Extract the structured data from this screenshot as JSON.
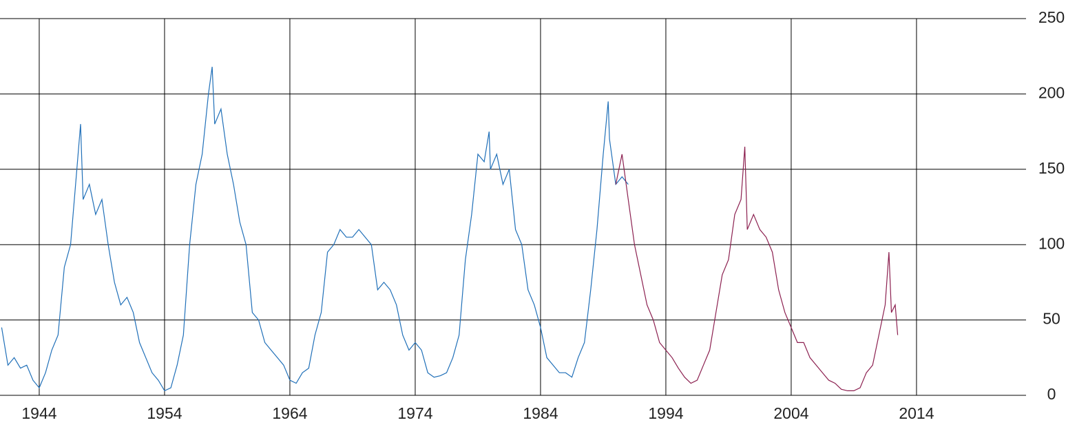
{
  "chart_data": {
    "type": "line",
    "xlim": [
      1940.87,
      2022.3
    ],
    "xticks": [
      1944,
      1954,
      1964,
      1974,
      1984,
      1994,
      2004,
      2014
    ],
    "ylim": [
      0,
      250
    ],
    "yticks": [
      0,
      50,
      100,
      150,
      200,
      250
    ],
    "grid": true,
    "series": [
      {
        "color": "#1f6fb8",
        "x": [
          1941.0,
          1941.5,
          1942,
          1942.5,
          1943,
          1943.5,
          1944,
          1944.5,
          1945,
          1945.5,
          1946,
          1946.5,
          1947,
          1947.3,
          1947.5,
          1948,
          1948.5,
          1949,
          1949.5,
          1950,
          1950.5,
          1951,
          1951.5,
          1952,
          1952.5,
          1953,
          1953.5,
          1954,
          1954.5,
          1955,
          1955.5,
          1956,
          1956.5,
          1957,
          1957.5,
          1957.8,
          1958,
          1958.5,
          1959,
          1959.5,
          1960,
          1960.5,
          1961,
          1961.5,
          1962,
          1962.5,
          1963,
          1963.5,
          1964,
          1964.5,
          1965,
          1965.5,
          1966,
          1966.5,
          1967,
          1967.5,
          1968,
          1968.5,
          1969,
          1969.5,
          1970,
          1970.5,
          1971,
          1971.5,
          1972,
          1972.5,
          1973,
          1973.5,
          1974,
          1974.5,
          1975,
          1975.5,
          1976,
          1976.5,
          1977,
          1977.5,
          1978,
          1978.5,
          1979,
          1979.5,
          1979.9,
          1980,
          1980.5,
          1981,
          1981.5,
          1982,
          1982.5,
          1983,
          1983.5,
          1984,
          1984.5,
          1985,
          1985.5,
          1986,
          1986.5,
          1987,
          1987.5,
          1988,
          1988.5,
          1989,
          1989.4,
          1989.5,
          1990,
          1990.5,
          1991
        ],
        "values": [
          45,
          20,
          25,
          18,
          20,
          10,
          5,
          15,
          30,
          40,
          85,
          100,
          150,
          180,
          130,
          140,
          120,
          130,
          100,
          75,
          60,
          65,
          55,
          35,
          25,
          15,
          10,
          3,
          5,
          20,
          40,
          100,
          140,
          160,
          200,
          218,
          180,
          190,
          160,
          140,
          115,
          100,
          55,
          50,
          35,
          30,
          25,
          20,
          10,
          8,
          15,
          18,
          40,
          55,
          95,
          100,
          110,
          105,
          105,
          110,
          105,
          100,
          70,
          75,
          70,
          60,
          40,
          30,
          35,
          30,
          15,
          12,
          13,
          15,
          25,
          40,
          90,
          120,
          160,
          155,
          175,
          150,
          160,
          140,
          150,
          110,
          100,
          70,
          60,
          45,
          25,
          20,
          15,
          15,
          12,
          25,
          35,
          70,
          110,
          160,
          195,
          170,
          140,
          145,
          140
        ]
      },
      {
        "color": "#8b1f4f",
        "x": [
          1990,
          1990.5,
          1991,
          1991.5,
          1992,
          1992.5,
          1993,
          1993.5,
          1994,
          1994.5,
          1995,
          1995.5,
          1996,
          1996.5,
          1997,
          1997.5,
          1998,
          1998.5,
          1999,
          1999.5,
          2000,
          2000.3,
          2000.5,
          2001,
          2001.5,
          2002,
          2002.5,
          2003,
          2003.5,
          2004,
          2004.5,
          2005,
          2005.5,
          2006,
          2006.5,
          2007,
          2007.5,
          2008,
          2008.5,
          2009,
          2009.5,
          2010,
          2010.5,
          2011,
          2011.5,
          2011.8,
          2012,
          2012.3,
          2012.5
        ],
        "values": [
          140,
          160,
          130,
          100,
          80,
          60,
          50,
          35,
          30,
          25,
          18,
          12,
          8,
          10,
          20,
          30,
          55,
          80,
          90,
          120,
          130,
          165,
          110,
          120,
          110,
          105,
          95,
          70,
          55,
          45,
          35,
          35,
          25,
          20,
          15,
          10,
          8,
          4,
          3,
          3,
          5,
          15,
          20,
          40,
          60,
          95,
          55,
          60,
          40
        ]
      }
    ]
  }
}
